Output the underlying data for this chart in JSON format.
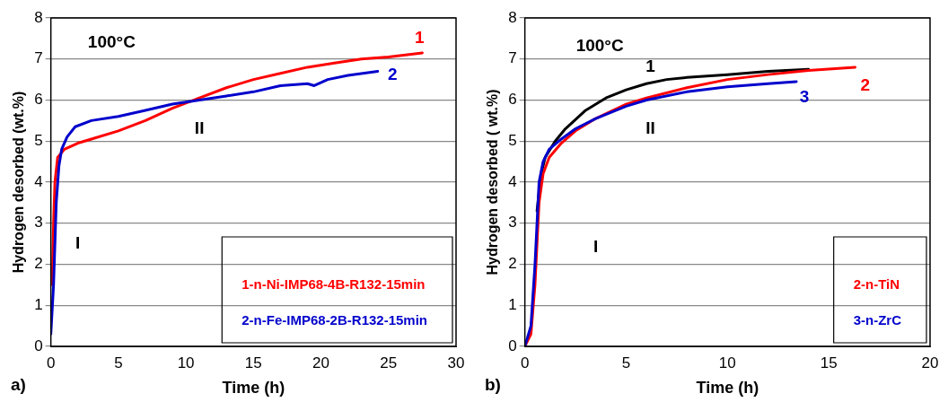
{
  "chart_data": [
    {
      "type": "line",
      "xlabel": "Time (h)",
      "ylabel": "Hydrogen desorbed (wt.%)",
      "xlim": [
        0,
        30
      ],
      "ylim": [
        0,
        8
      ],
      "xticks": [
        0,
        5,
        10,
        15,
        20,
        25,
        30
      ],
      "yticks": [
        0,
        1,
        2,
        3,
        4,
        5,
        6,
        7,
        8
      ],
      "grid": "y",
      "legend": "bottom right",
      "marker": "none",
      "line_style": "solid",
      "series": [
        {
          "name": "1-n-Ni-IMP68-4B-R132-15min",
          "color": "#ff0000",
          "x": [
            0.1,
            0.2,
            0.3,
            0.5,
            1,
            2,
            3,
            5,
            7,
            9,
            11,
            13,
            15,
            17,
            19,
            21,
            23,
            25,
            27.5
          ],
          "values": [
            1.5,
            3,
            4,
            4.6,
            4.8,
            4.95,
            5.05,
            5.25,
            5.5,
            5.8,
            6.05,
            6.3,
            6.5,
            6.65,
            6.8,
            6.9,
            7.0,
            7.05,
            7.15
          ]
        },
        {
          "name": "2-n-Fe-IMP68-2B-R132-15min",
          "color": "#0000cc",
          "x": [
            0,
            0.2,
            0.4,
            0.6,
            0.8,
            1.2,
            1.8,
            3,
            5,
            7,
            9,
            11,
            13,
            15,
            17,
            19,
            19.5,
            20.5,
            22,
            24.2
          ],
          "values": [
            0.3,
            1.5,
            3.5,
            4.4,
            4.8,
            5.1,
            5.35,
            5.5,
            5.6,
            5.75,
            5.9,
            6.0,
            6.1,
            6.2,
            6.35,
            6.4,
            6.35,
            6.5,
            6.6,
            6.7
          ]
        }
      ],
      "annotations": [
        "100°C",
        "1",
        "2",
        "II",
        "I",
        "a)"
      ]
    },
    {
      "type": "line",
      "xlabel": "Time (h)",
      "ylabel": "Hydrogen desorbed ( wt.%)",
      "xlim": [
        0,
        20
      ],
      "ylim": [
        0,
        8
      ],
      "xticks": [
        0,
        5,
        10,
        15,
        20
      ],
      "yticks": [
        0,
        1,
        2,
        3,
        4,
        5,
        6,
        7,
        8
      ],
      "grid": "y",
      "legend": "bottom right",
      "marker": "none",
      "line_style": "solid",
      "series": [
        {
          "color": "#000000",
          "x": [
            0.6,
            0.8,
            1,
            1.5,
            2,
            3,
            4,
            5,
            6,
            7,
            8,
            10,
            12,
            14
          ],
          "values": [
            3.3,
            4.2,
            4.6,
            5,
            5.3,
            5.75,
            6.05,
            6.25,
            6.4,
            6.5,
            6.55,
            6.62,
            6.7,
            6.75
          ]
        },
        {
          "name": "2-n-TiN",
          "color": "#ff0000",
          "x": [
            0,
            0.3,
            0.5,
            0.7,
            0.9,
            1.2,
            1.8,
            2.5,
            3.5,
            5,
            6,
            8,
            10,
            12,
            14,
            16.3
          ],
          "values": [
            0,
            0.3,
            1.5,
            3.5,
            4.2,
            4.6,
            4.95,
            5.25,
            5.55,
            5.9,
            6.05,
            6.3,
            6.5,
            6.62,
            6.72,
            6.8
          ]
        },
        {
          "name": "3-n-ZrC",
          "color": "#0000cc",
          "x": [
            0,
            0.3,
            0.5,
            0.7,
            0.9,
            1.2,
            1.8,
            2.5,
            3.5,
            5,
            6,
            8,
            10,
            12,
            13.4
          ],
          "values": [
            0,
            0.5,
            2,
            4,
            4.5,
            4.8,
            5.05,
            5.3,
            5.55,
            5.85,
            6.0,
            6.2,
            6.32,
            6.4,
            6.45
          ]
        }
      ],
      "annotations": [
        "100°C",
        "1",
        "2",
        "3",
        "II",
        "I",
        "b)"
      ]
    }
  ]
}
